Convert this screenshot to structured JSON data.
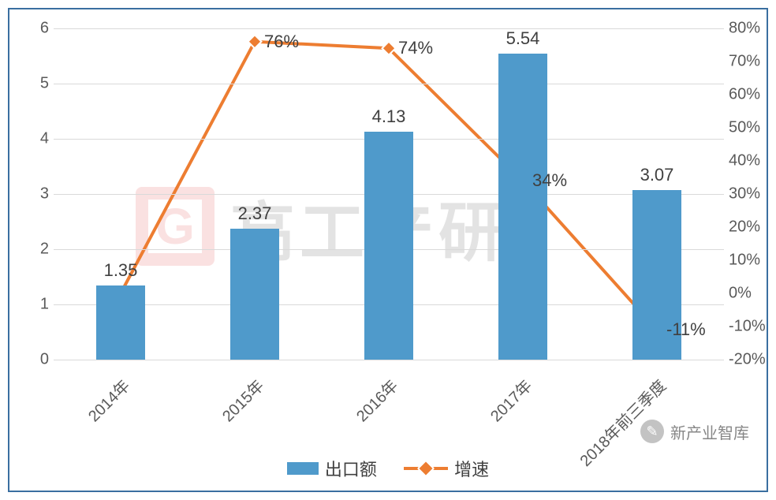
{
  "chart": {
    "type": "bar+line",
    "background_color": "#ffffff",
    "border_color": "#3a6fa0",
    "grid_color": "#d9d9d9",
    "text_color": "#5a5a5a",
    "data_label_color": "#404040",
    "categories": [
      "2014年",
      "2015年",
      "2016年",
      "2017年",
      "2018年前三季度"
    ],
    "bars": {
      "name": "出口额",
      "values": [
        1.35,
        2.37,
        4.13,
        5.54,
        3.07
      ],
      "value_labels": [
        "1.35",
        "2.37",
        "4.13",
        "5.54",
        "3.07"
      ],
      "color": "#4f9acb",
      "width_fraction": 0.36
    },
    "line": {
      "name": "增速",
      "values": [
        0,
        76,
        74,
        34,
        -11
      ],
      "value_labels": [
        "",
        "76%",
        "74%",
        "34%",
        "-11%"
      ],
      "line_color": "#ed7d31",
      "line_width": 4,
      "marker_size": 12,
      "marker_shape": "diamond",
      "marker_fill": "#ed7d31",
      "marker_border": "#ffffff"
    },
    "y_left": {
      "min": 0,
      "max": 6,
      "step": 1,
      "ticks": [
        "0",
        "1",
        "2",
        "3",
        "4",
        "5",
        "6"
      ]
    },
    "y_right": {
      "min": -20,
      "max": 80,
      "step": 10,
      "ticks": [
        "-20%",
        "-10%",
        "0%",
        "10%",
        "20%",
        "30%",
        "40%",
        "50%",
        "60%",
        "70%",
        "80%"
      ]
    },
    "x_label_rotation": -45,
    "axis_fontsize": 20,
    "data_label_fontsize": 22,
    "legend_fontsize": 22
  },
  "legend": {
    "bar_label": "出口额",
    "line_label": "增速"
  },
  "watermark": {
    "icon_letter": "G",
    "text": "高工产研"
  },
  "corner": {
    "text": "新产业智库"
  }
}
